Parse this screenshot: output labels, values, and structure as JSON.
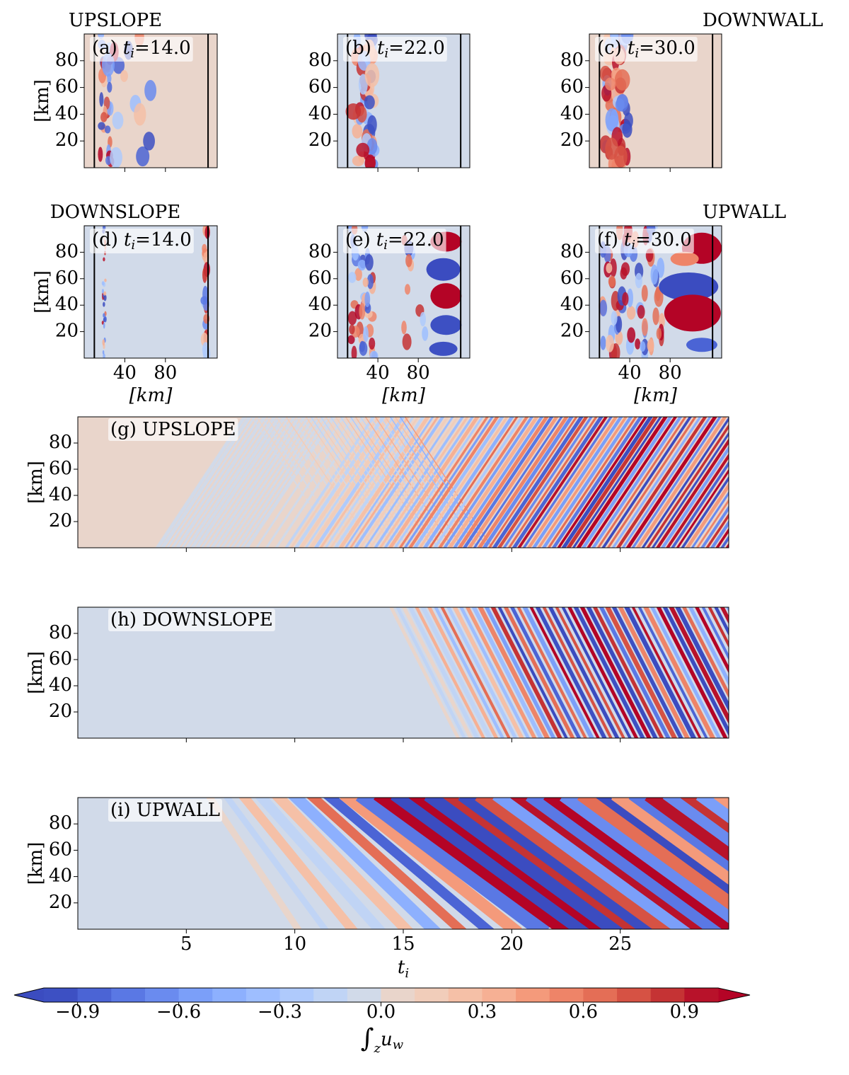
{
  "chart_data": [
    {
      "type": "heatmap",
      "heading": "UPSLOPE",
      "heading_align": "left",
      "panel": "(a)",
      "var": "t",
      "var_sub": "i",
      "value_text": "=14.0",
      "xlim": [
        0,
        131
      ],
      "ylim": [
        0,
        100
      ],
      "xticks": [
        40,
        80
      ],
      "xtick_labels": false,
      "yticks": [
        20,
        40,
        60,
        80
      ],
      "ylabel": "[km]",
      "vlines": [
        10,
        122
      ],
      "background": "#e9d5cb"
    },
    {
      "type": "heatmap",
      "panel": "(b)",
      "var": "t",
      "var_sub": "i",
      "value_text": "=22.0",
      "xlim": [
        0,
        131
      ],
      "ylim": [
        0,
        100
      ],
      "xticks": [
        40,
        80
      ],
      "xtick_labels": false,
      "yticks": [
        20,
        40,
        60,
        80
      ],
      "vlines": [
        10,
        122
      ],
      "background": "#d1dae9"
    },
    {
      "type": "heatmap",
      "heading": "DOWNWALL",
      "heading_align": "right",
      "panel": "(c)",
      "var": "t",
      "var_sub": "i",
      "value_text": "=30.0",
      "xlim": [
        0,
        131
      ],
      "ylim": [
        0,
        100
      ],
      "xticks": [
        40,
        80
      ],
      "xtick_labels": false,
      "yticks": [
        20,
        40,
        60,
        80
      ],
      "vlines": [
        10,
        122
      ],
      "background": "#e9d5cb"
    },
    {
      "type": "heatmap",
      "heading": "DOWNSLOPE",
      "heading_align": "left",
      "panel": "(d)",
      "var": "t",
      "var_sub": "i",
      "value_text": "=14.0",
      "xlim": [
        0,
        131
      ],
      "ylim": [
        0,
        100
      ],
      "xticks": [
        40,
        80
      ],
      "yticks": [
        20,
        40,
        60,
        80
      ],
      "ylabel": "[km]",
      "xlabel": "[km]",
      "vlines": [
        10,
        122
      ],
      "background": "#d1dae9"
    },
    {
      "type": "heatmap",
      "panel": "(e)",
      "var": "t",
      "var_sub": "i",
      "value_text": "=22.0",
      "xlim": [
        0,
        131
      ],
      "ylim": [
        0,
        100
      ],
      "xticks": [
        40,
        80
      ],
      "yticks": [
        20,
        40,
        60,
        80
      ],
      "xlabel": "[km]",
      "vlines": [
        10,
        122
      ],
      "background": "#d1dae9"
    },
    {
      "type": "heatmap",
      "heading": "UPWALL",
      "heading_align": "right",
      "panel": "(f)",
      "var": "t",
      "var_sub": "i",
      "value_text": "=30.0",
      "xlim": [
        0,
        131
      ],
      "ylim": [
        0,
        100
      ],
      "xticks": [
        40,
        80
      ],
      "yticks": [
        20,
        40,
        60,
        80
      ],
      "xlabel": "[km]",
      "vlines": [
        10,
        122
      ],
      "background": "#d1dae9"
    },
    {
      "type": "heatmap",
      "title": "(g) UPSLOPE",
      "xlim": [
        0,
        30
      ],
      "ylim": [
        0,
        100
      ],
      "xticks": [
        5,
        10,
        15,
        20,
        25
      ],
      "xtick_labels": false,
      "yticks": [
        20,
        40,
        60,
        80
      ],
      "ylabel": "[km]",
      "background": "#e9d5cb"
    },
    {
      "type": "heatmap",
      "title": "(h) DOWNSLOPE",
      "xlim": [
        0,
        30
      ],
      "ylim": [
        0,
        100
      ],
      "xticks": [
        5,
        10,
        15,
        20,
        25
      ],
      "xtick_labels": false,
      "yticks": [
        20,
        40,
        60,
        80
      ],
      "ylabel": "[km]",
      "background": "#d1dae9"
    },
    {
      "type": "heatmap",
      "title": "(i) UPWALL",
      "xlim": [
        0,
        30
      ],
      "ylim": [
        0,
        100
      ],
      "xticks": [
        5,
        10,
        15,
        20,
        25
      ],
      "yticks": [
        20,
        40,
        60,
        80
      ],
      "ylabel": "[km]",
      "xlabel": "t",
      "xlabel_sub": "i",
      "background": "#d1dae9"
    },
    {
      "type": "colorbar",
      "label_symbol": "∫",
      "label_sub": "z",
      "label_var": "u",
      "label_var_sub": "w",
      "xlim": [
        -1,
        1
      ],
      "levels": [
        -1,
        -0.9,
        -0.8,
        -0.7,
        -0.6,
        -0.5,
        -0.4,
        -0.3,
        -0.2,
        -0.1,
        0,
        0.1,
        0.2,
        0.3,
        0.4,
        0.5,
        0.6,
        0.7,
        0.8,
        0.9,
        1
      ],
      "colors": [
        "#3d50c3",
        "#4b64d5",
        "#5a78e4",
        "#6a8bef",
        "#7b9ff9",
        "#8db0fe",
        "#9ebeff",
        "#afcafc",
        "#c0d4f5",
        "#d1dae9",
        "#e9d5cb",
        "#f1cdba",
        "#f5c0a7",
        "#f6b094",
        "#f49a7b",
        "#ee8468",
        "#e46e56",
        "#d65244",
        "#c53334",
        "#b8122a"
      ],
      "under_color": "#3b4cc0",
      "over_color": "#b40426",
      "xticks": [
        {
          "value": -0.9,
          "label": "−0.9"
        },
        {
          "value": -0.6,
          "label": "−0.6"
        },
        {
          "value": -0.3,
          "label": "−0.3"
        },
        {
          "value": 0,
          "label": "0.0"
        },
        0.3,
        0.6,
        0.9
      ]
    }
  ]
}
